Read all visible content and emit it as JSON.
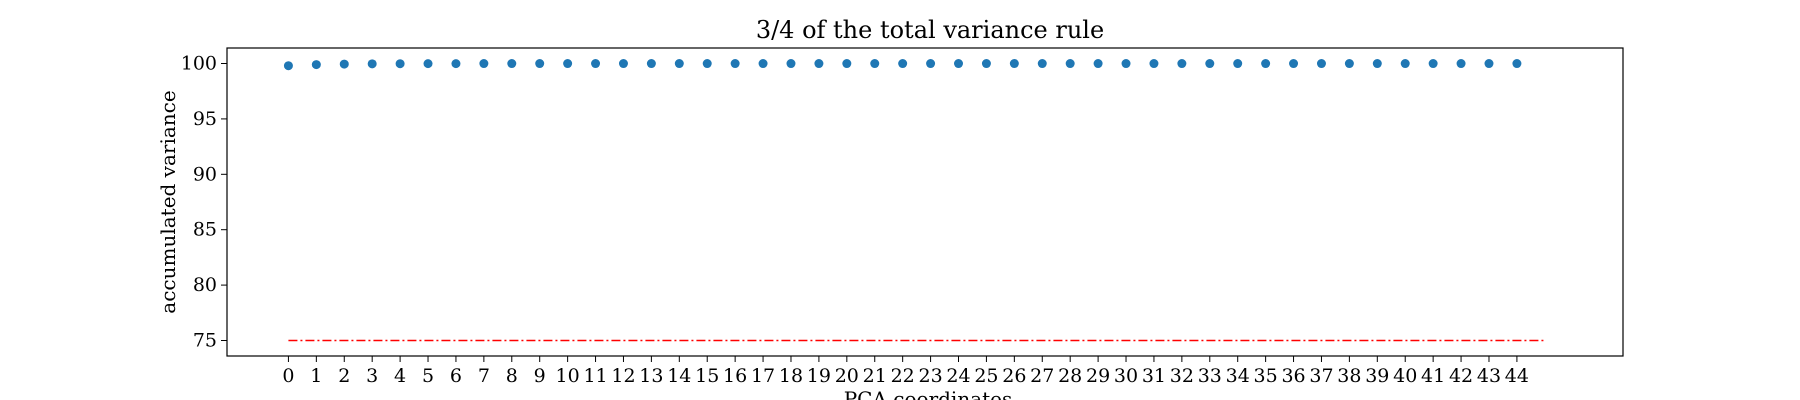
{
  "chart_data": {
    "type": "scatter",
    "title": "3/4 of the total variance rule",
    "xlabel": "PCA coordinates",
    "ylabel": "accumulated variance",
    "x": [
      0,
      1,
      2,
      3,
      4,
      5,
      6,
      7,
      8,
      9,
      10,
      11,
      12,
      13,
      14,
      15,
      16,
      17,
      18,
      19,
      20,
      21,
      22,
      23,
      24,
      25,
      26,
      27,
      28,
      29,
      30,
      31,
      32,
      33,
      34,
      35,
      36,
      37,
      38,
      39,
      40,
      41,
      42,
      43,
      44
    ],
    "x_tick_labels": [
      "0",
      "1",
      "2",
      "3",
      "4",
      "5",
      "6",
      "7",
      "8",
      "9",
      "10",
      "11",
      "12",
      "13",
      "14",
      "15",
      "16",
      "17",
      "18",
      "19",
      "20",
      "21",
      "22",
      "23",
      "24",
      "25",
      "26",
      "27",
      "28",
      "29",
      "30",
      "31",
      "32",
      "33",
      "34",
      "35",
      "36",
      "37",
      "38",
      "39",
      "40",
      "41",
      "42",
      "43",
      "44"
    ],
    "series": [
      {
        "color": "#1f77b4",
        "values": [
          99.8,
          99.9,
          99.95,
          99.97,
          99.98,
          99.99,
          99.99,
          100,
          100,
          100,
          100,
          100,
          100,
          100,
          100,
          100,
          100,
          100,
          100,
          100,
          100,
          100,
          100,
          100,
          100,
          100,
          100,
          100,
          100,
          100,
          100,
          100,
          100,
          100,
          100,
          100,
          100,
          100,
          100,
          100,
          100,
          100,
          100,
          100,
          100
        ]
      }
    ],
    "threshold": {
      "value": 75,
      "x_range": [
        0,
        45
      ],
      "color": "#ff0000",
      "style": "dashdot"
    },
    "y_ticks": [
      75,
      80,
      85,
      90,
      95,
      100
    ],
    "y_tick_labels": [
      "75",
      "80",
      "85",
      "90",
      "95",
      "100"
    ],
    "xlim": [
      -2.2,
      47.8
    ],
    "ylim": [
      73.6,
      101.4
    ],
    "grid": false,
    "legend": "none"
  }
}
